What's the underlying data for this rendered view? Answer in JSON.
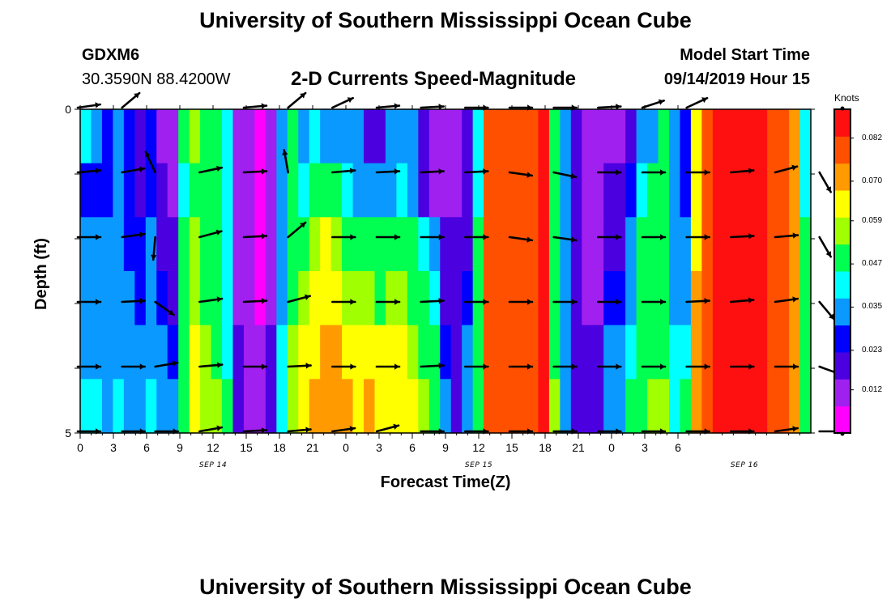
{
  "header": {
    "title": "University of Southern Mississippi Ocean Cube",
    "station_id": "GDXM6",
    "location": "30.3590N 88.4200W",
    "plot_title": "2-D Currents Speed-Magnitude",
    "start_label": "Model Start Time",
    "start_time": "09/14/2019 Hour 15"
  },
  "footer": {
    "title": "University of Southern Mississippi Ocean Cube"
  },
  "colors": {
    "scale": [
      "#ff00ff",
      "#a020f0",
      "#4b00e0",
      "#0000ff",
      "#0a9aff",
      "#00ffff",
      "#00ff50",
      "#a0ff00",
      "#ffff00",
      "#ff9a00",
      "#ff5000",
      "#ff1010"
    ]
  },
  "chart_data": {
    "type": "heatmap",
    "title": "2-D Currents Speed-Magnitude",
    "xlabel": "Forecast Time(Z)",
    "ylabel": "Depth (ft)",
    "x_ticks": [
      "0",
      "3",
      "6",
      "9",
      "12",
      "15",
      "18",
      "21",
      "0",
      "3",
      "6",
      "9",
      "12",
      "15",
      "18",
      "21",
      "0",
      "3",
      "6"
    ],
    "y_ticks": [
      "0",
      "5"
    ],
    "ylim": [
      0,
      5
    ],
    "date_labels": [
      {
        "text": "SEP 14",
        "hour": 12
      },
      {
        "text": "SEP 15",
        "hour": 36
      },
      {
        "text": "SEP 16",
        "hour": 60
      }
    ],
    "colorbar": {
      "label": "Knots",
      "ticks": [
        "0.082",
        "0.070",
        "0.059",
        "0.047",
        "0.035",
        "0.023",
        "0.012"
      ],
      "tick_values": [
        0.082,
        0.07,
        0.059,
        0.047,
        0.035,
        0.023,
        0.012
      ],
      "min": 0.0,
      "max": 0.09
    },
    "hours": [
      0,
      1,
      2,
      3,
      4,
      5,
      6,
      7,
      8,
      9,
      10,
      11,
      12,
      13,
      14,
      15,
      16,
      17,
      18,
      19,
      20,
      21,
      22,
      23,
      24,
      25,
      26,
      27,
      28,
      29,
      30,
      31,
      32,
      33,
      34,
      35,
      36,
      37,
      38,
      39,
      40,
      41,
      42,
      43,
      44,
      45,
      46,
      47,
      48,
      49,
      50,
      51,
      52,
      53,
      54,
      55,
      56,
      57,
      58,
      59,
      60,
      61,
      62,
      63,
      64,
      65,
      66
    ],
    "depth_rows": [
      0,
      1,
      2,
      3,
      4,
      5
    ],
    "speed_knots": [
      [
        0.04,
        0.03,
        0.025,
        0.03,
        0.027,
        0.02,
        0.023,
        0.012,
        0.012,
        0.05,
        0.057,
        0.05,
        0.045,
        0.04,
        0.012,
        0.008,
        0.005,
        0.012,
        0.035,
        0.045,
        0.035,
        0.04,
        0.035,
        0.032,
        0.035,
        0.03,
        0.02,
        0.015,
        0.03,
        0.035,
        0.03,
        0.022,
        0.012,
        0.01,
        0.012,
        0.015,
        0.04,
        0.078,
        0.08,
        0.075,
        0.08,
        0.075,
        0.085,
        0.05,
        0.035,
        0.015,
        0.012,
        0.012,
        0.012,
        0.01,
        0.015,
        0.03,
        0.035,
        0.045,
        0.03,
        0.025,
        0.06,
        0.075,
        0.085,
        0.085,
        0.088,
        0.085,
        0.085,
        0.08,
        0.08,
        0.07,
        0.04
      ],
      [
        0.025,
        0.025,
        0.025,
        0.03,
        0.027,
        0.022,
        0.025,
        0.015,
        0.012,
        0.04,
        0.05,
        0.045,
        0.045,
        0.04,
        0.01,
        0.008,
        0.005,
        0.012,
        0.035,
        0.045,
        0.04,
        0.045,
        0.05,
        0.045,
        0.04,
        0.035,
        0.035,
        0.03,
        0.035,
        0.04,
        0.03,
        0.022,
        0.012,
        0.01,
        0.012,
        0.015,
        0.04,
        0.078,
        0.082,
        0.078,
        0.08,
        0.075,
        0.085,
        0.05,
        0.035,
        0.015,
        0.012,
        0.012,
        0.015,
        0.015,
        0.025,
        0.04,
        0.045,
        0.048,
        0.03,
        0.025,
        0.06,
        0.078,
        0.085,
        0.085,
        0.088,
        0.085,
        0.085,
        0.08,
        0.08,
        0.07,
        0.04
      ],
      [
        0.03,
        0.03,
        0.03,
        0.03,
        0.027,
        0.025,
        0.03,
        0.018,
        0.015,
        0.045,
        0.055,
        0.05,
        0.05,
        0.04,
        0.01,
        0.008,
        0.005,
        0.012,
        0.035,
        0.05,
        0.052,
        0.055,
        0.06,
        0.055,
        0.05,
        0.048,
        0.05,
        0.045,
        0.05,
        0.052,
        0.045,
        0.04,
        0.03,
        0.015,
        0.015,
        0.02,
        0.045,
        0.078,
        0.082,
        0.078,
        0.08,
        0.075,
        0.085,
        0.05,
        0.035,
        0.015,
        0.012,
        0.012,
        0.02,
        0.02,
        0.03,
        0.045,
        0.048,
        0.048,
        0.032,
        0.03,
        0.065,
        0.08,
        0.085,
        0.085,
        0.088,
        0.085,
        0.085,
        0.08,
        0.08,
        0.07,
        0.045
      ],
      [
        0.032,
        0.032,
        0.03,
        0.032,
        0.03,
        0.028,
        0.033,
        0.025,
        0.02,
        0.048,
        0.058,
        0.052,
        0.05,
        0.04,
        0.012,
        0.008,
        0.005,
        0.012,
        0.035,
        0.052,
        0.058,
        0.06,
        0.065,
        0.06,
        0.058,
        0.055,
        0.058,
        0.052,
        0.058,
        0.058,
        0.052,
        0.048,
        0.04,
        0.02,
        0.018,
        0.025,
        0.048,
        0.078,
        0.082,
        0.078,
        0.08,
        0.075,
        0.085,
        0.052,
        0.035,
        0.015,
        0.012,
        0.012,
        0.025,
        0.025,
        0.035,
        0.048,
        0.05,
        0.05,
        0.035,
        0.035,
        0.068,
        0.08,
        0.085,
        0.085,
        0.088,
        0.085,
        0.085,
        0.08,
        0.08,
        0.07,
        0.045
      ],
      [
        0.035,
        0.035,
        0.033,
        0.035,
        0.033,
        0.032,
        0.035,
        0.03,
        0.025,
        0.05,
        0.06,
        0.055,
        0.052,
        0.042,
        0.015,
        0.01,
        0.008,
        0.015,
        0.038,
        0.055,
        0.062,
        0.065,
        0.07,
        0.068,
        0.065,
        0.062,
        0.065,
        0.06,
        0.062,
        0.062,
        0.058,
        0.052,
        0.045,
        0.025,
        0.02,
        0.03,
        0.05,
        0.078,
        0.082,
        0.078,
        0.08,
        0.075,
        0.085,
        0.052,
        0.035,
        0.018,
        0.015,
        0.015,
        0.03,
        0.03,
        0.04,
        0.05,
        0.052,
        0.052,
        0.038,
        0.04,
        0.07,
        0.082,
        0.085,
        0.085,
        0.088,
        0.085,
        0.085,
        0.08,
        0.08,
        0.07,
        0.045
      ],
      [
        0.04,
        0.038,
        0.036,
        0.038,
        0.036,
        0.035,
        0.038,
        0.035,
        0.03,
        0.052,
        0.062,
        0.058,
        0.055,
        0.045,
        0.018,
        0.012,
        0.01,
        0.018,
        0.04,
        0.058,
        0.065,
        0.068,
        0.072,
        0.072,
        0.068,
        0.065,
        0.068,
        0.065,
        0.065,
        0.065,
        0.062,
        0.055,
        0.048,
        0.03,
        0.022,
        0.035,
        0.052,
        0.078,
        0.082,
        0.078,
        0.08,
        0.075,
        0.085,
        0.055,
        0.035,
        0.02,
        0.018,
        0.018,
        0.035,
        0.035,
        0.045,
        0.052,
        0.055,
        0.055,
        0.04,
        0.045,
        0.072,
        0.082,
        0.085,
        0.085,
        0.088,
        0.085,
        0.085,
        0.08,
        0.08,
        0.07,
        0.045
      ]
    ],
    "vector_hours": [
      0,
      4,
      7,
      11,
      15,
      19,
      23,
      27,
      31,
      35,
      39,
      43,
      47,
      51,
      55,
      59,
      63,
      67
    ],
    "vector_rows": [
      0,
      1,
      2,
      3,
      4,
      5
    ],
    "vector_directions_deg": [
      [
        -8,
        -40,
        null,
        null,
        -5,
        -40,
        -25,
        -5,
        -3,
        0,
        0,
        0,
        -3,
        -18,
        -25,
        null,
        null,
        null
      ],
      [
        -5,
        -10,
        -115,
        -12,
        -3,
        -100,
        -5,
        -3,
        -3,
        -3,
        8,
        12,
        0,
        0,
        0,
        -5,
        -15,
        60
      ],
      [
        0,
        -8,
        95,
        -15,
        -3,
        -40,
        0,
        0,
        0,
        0,
        8,
        8,
        0,
        0,
        0,
        -3,
        -5,
        60
      ],
      [
        0,
        -3,
        35,
        -8,
        -3,
        -15,
        0,
        0,
        -3,
        0,
        0,
        0,
        0,
        0,
        -3,
        -5,
        -8,
        50
      ],
      [
        0,
        0,
        -10,
        -5,
        0,
        -3,
        0,
        0,
        -3,
        0,
        0,
        0,
        0,
        0,
        0,
        0,
        0,
        20
      ],
      [
        0,
        0,
        0,
        -10,
        -3,
        -5,
        -8,
        -15,
        0,
        0,
        0,
        0,
        0,
        0,
        0,
        0,
        -8,
        0
      ]
    ]
  }
}
